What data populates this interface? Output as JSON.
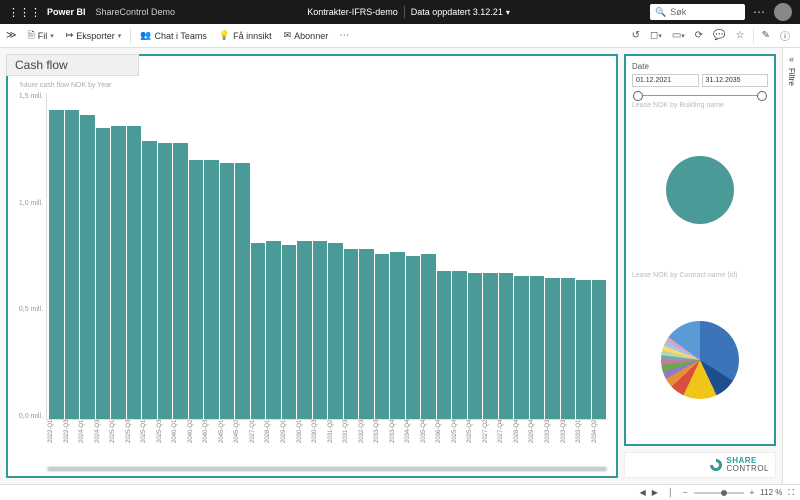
{
  "colors": {
    "accent": "#2e9996",
    "bar": "#4a9b98",
    "topbar_bg": "#1a1a1a"
  },
  "topbar": {
    "brand": "Power BI",
    "workspace": "ShareControl Demo",
    "report_name": "Kontrakter-IFRS-demo",
    "data_updated_label": "Data oppdatert 3.12.21",
    "search_placeholder": "Søk"
  },
  "cmdbar": {
    "file": "Fil",
    "export": "Eksporter",
    "chat_teams": "Chat i Teams",
    "insights": "Få innsikt",
    "subscribe": "Abonner"
  },
  "filter_rail": {
    "label": "Filtre"
  },
  "main_chart": {
    "title": "Cash flow",
    "subtitle": "future cash flow NOK by Year",
    "type": "bar",
    "y_axis": {
      "max": 1.5,
      "min": 0.0,
      "ticks": [
        "1,5 mill.",
        "1,0 mill.",
        "0,5 mill.",
        "0,0 mill."
      ]
    },
    "bar_color": "#4a9b98",
    "background_color": "#ffffff",
    "categories": [
      "2022-Q1",
      "2022-Q3",
      "2024-Q1",
      "2024-Q3",
      "2025-Q1",
      "2025-Q3",
      "2025-Q1",
      "2025-Q3",
      "2040-Q1",
      "2040-Q2",
      "2040-Q3",
      "2045-Q1",
      "2045-Q2",
      "2027-Q1",
      "2028-Q1",
      "2029-Q1",
      "2030-Q1",
      "2030-Q3",
      "2031-Q2",
      "2031-Q3",
      "2032-Q3",
      "2033-Q3",
      "2033-Q4",
      "2034-Q4",
      "2035-Q4",
      "2036-Q4",
      "2025-Q4",
      "2025-Q4",
      "2027-Q2",
      "2027-Q4",
      "2028-Q4",
      "2029-Q4",
      "2033-Q3",
      "2033-Q3",
      "2033-Q1",
      "2034-Q2"
    ],
    "values": [
      1.42,
      1.42,
      1.4,
      1.34,
      1.35,
      1.35,
      1.28,
      1.27,
      1.27,
      1.19,
      1.19,
      1.18,
      1.18,
      0.81,
      0.82,
      0.8,
      0.82,
      0.82,
      0.81,
      0.78,
      0.78,
      0.76,
      0.77,
      0.75,
      0.76,
      0.68,
      0.68,
      0.67,
      0.67,
      0.67,
      0.66,
      0.66,
      0.65,
      0.65,
      0.64,
      0.64
    ]
  },
  "date_filter": {
    "label": "Date",
    "from": "01.12.2021",
    "to": "31.12.2035"
  },
  "pie_building": {
    "title": "Lease NOK by Building name",
    "type": "pie",
    "slices": [
      {
        "value": 100,
        "color": "#4a9b98"
      }
    ]
  },
  "pie_contract": {
    "title": "Lease NOK by Contract name (id)",
    "type": "pie",
    "slices": [
      {
        "value": 34,
        "color": "#3b74b8"
      },
      {
        "value": 9,
        "color": "#1f4e8c"
      },
      {
        "value": 14,
        "color": "#f0c419"
      },
      {
        "value": 6,
        "color": "#d94f3d"
      },
      {
        "value": 4,
        "color": "#e69138"
      },
      {
        "value": 3,
        "color": "#8e7cc3"
      },
      {
        "value": 3,
        "color": "#6aa84f"
      },
      {
        "value": 2,
        "color": "#c27ba0"
      },
      {
        "value": 2,
        "color": "#76a5af"
      },
      {
        "value": 2,
        "color": "#b6d7a8"
      },
      {
        "value": 2,
        "color": "#ffd966"
      },
      {
        "value": 2,
        "color": "#a4c2f4"
      },
      {
        "value": 2,
        "color": "#d5a6bd"
      },
      {
        "value": 15,
        "color": "#5b9bd5"
      }
    ]
  },
  "logo": {
    "line1": "SHARE",
    "line2": "CONTROL"
  },
  "statusbar": {
    "zoom": "112 %"
  }
}
